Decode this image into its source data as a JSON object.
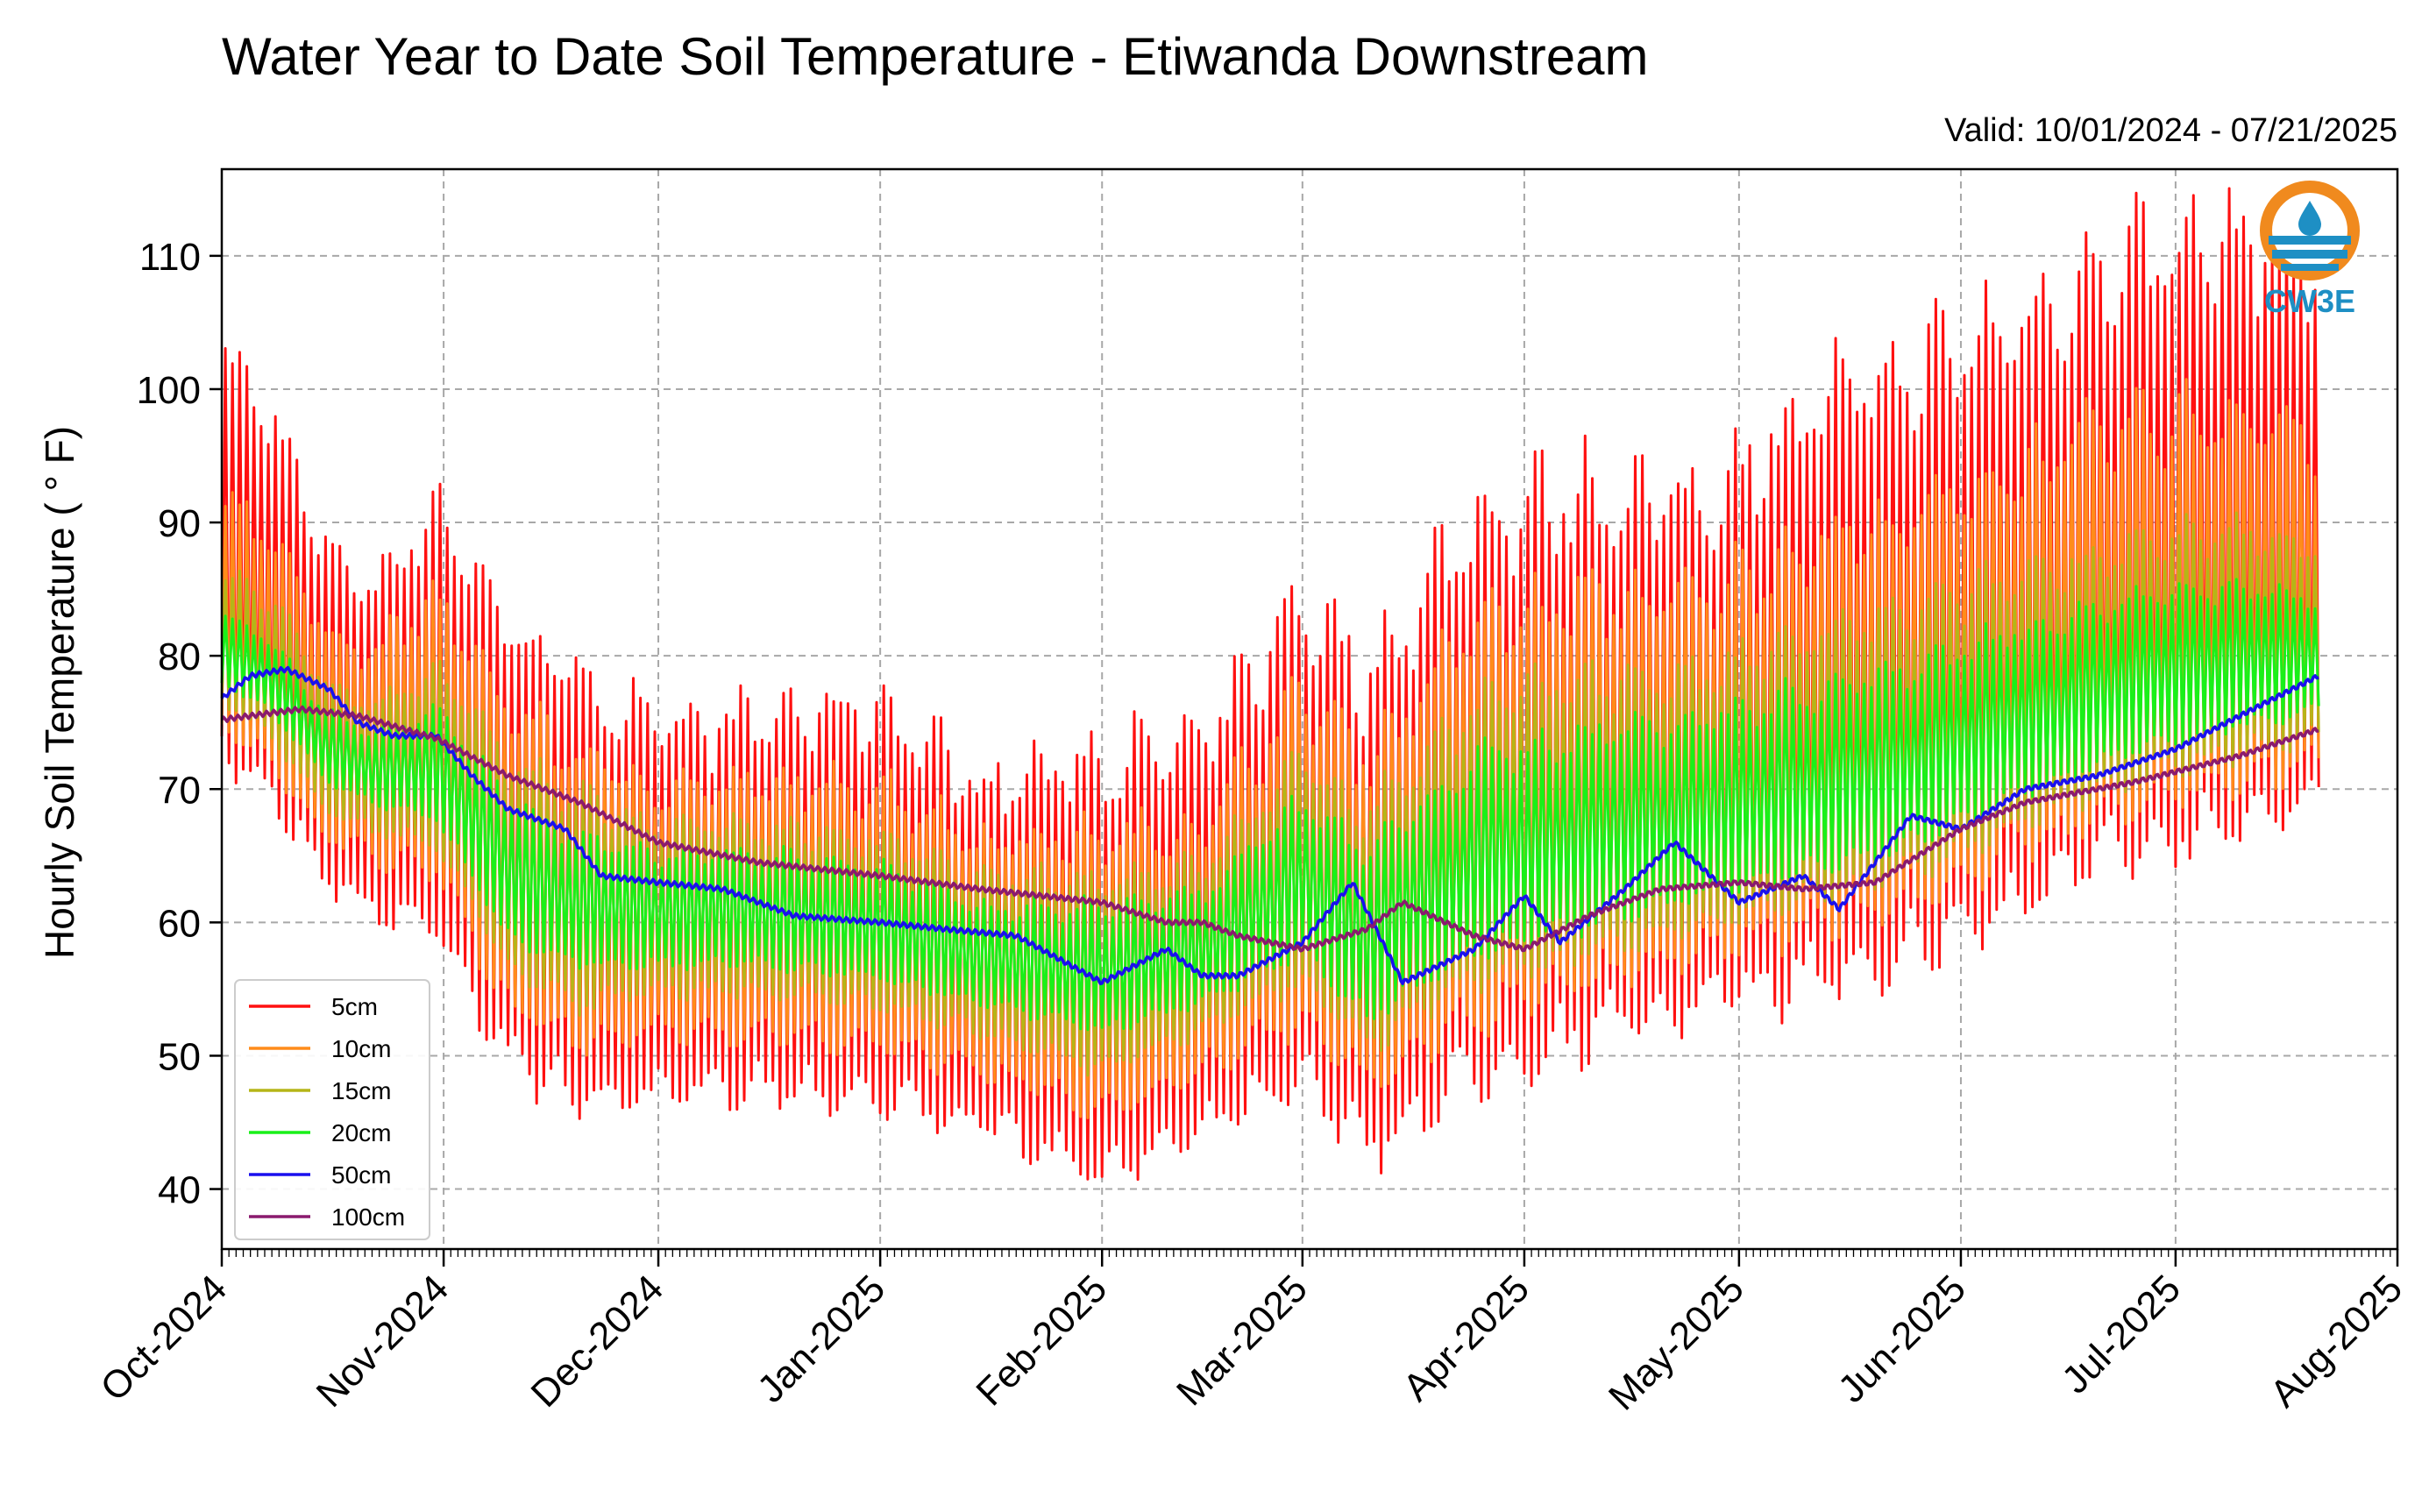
{
  "chart_data": {
    "type": "line",
    "title": "Water Year to Date Soil Temperature - Etiwanda Downstream",
    "subtitle": "Valid: 10/01/2024 - 07/21/2025",
    "ylabel": "Hourly Soil Temperature ( ° F)",
    "xlabel": "",
    "ylim": [
      35.5,
      116.5
    ],
    "yticks": [
      40,
      50,
      60,
      70,
      80,
      90,
      100,
      110
    ],
    "x_range": [
      "2024-10-01",
      "2025-08-01"
    ],
    "x_ticks": [
      {
        "date": "2024-10-01",
        "label": "Oct-2024"
      },
      {
        "date": "2024-11-01",
        "label": "Nov-2024"
      },
      {
        "date": "2024-12-01",
        "label": "Dec-2024"
      },
      {
        "date": "2025-01-01",
        "label": "Jan-2025"
      },
      {
        "date": "2025-02-01",
        "label": "Feb-2025"
      },
      {
        "date": "2025-03-01",
        "label": "Mar-2025"
      },
      {
        "date": "2025-04-01",
        "label": "Apr-2025"
      },
      {
        "date": "2025-05-01",
        "label": "May-2025"
      },
      {
        "date": "2025-06-01",
        "label": "Jun-2025"
      },
      {
        "date": "2025-07-01",
        "label": "Jul-2025"
      },
      {
        "date": "2025-08-01",
        "label": "Aug-2025"
      }
    ],
    "grid": true,
    "legend_position": "lower-left",
    "series": [
      {
        "name": "5cm",
        "color": "#ff1010",
        "kind": "diurnal",
        "dates": [
          "2024-10-01",
          "2024-10-08",
          "2024-10-15",
          "2024-10-22",
          "2024-10-31",
          "2024-11-10",
          "2024-11-20",
          "2024-12-01",
          "2024-12-15",
          "2025-01-01",
          "2025-01-15",
          "2025-02-01",
          "2025-02-15",
          "2025-03-01",
          "2025-03-10",
          "2025-03-25",
          "2025-04-10",
          "2025-04-25",
          "2025-05-10",
          "2025-05-25",
          "2025-06-10",
          "2025-06-25",
          "2025-07-10",
          "2025-07-21"
        ],
        "mins": [
          73,
          70,
          64,
          61,
          60,
          50,
          47,
          47,
          48,
          47,
          45,
          41,
          45,
          49,
          43,
          49,
          52,
          54,
          56,
          58,
          62,
          66,
          68,
          70
        ],
        "maxs": [
          102,
          98,
          88,
          85,
          91,
          82,
          78,
          74,
          75,
          76,
          70,
          72,
          73,
          84,
          78,
          90,
          92,
          91,
          98,
          101,
          105,
          110,
          111,
          108
        ]
      },
      {
        "name": "10cm",
        "color": "#ff8c1a",
        "kind": "diurnal",
        "dates": [
          "2024-10-01",
          "2024-10-08",
          "2024-10-15",
          "2024-10-22",
          "2024-10-31",
          "2024-11-10",
          "2024-11-20",
          "2024-12-01",
          "2024-12-15",
          "2025-01-01",
          "2025-01-15",
          "2025-02-01",
          "2025-02-15",
          "2025-03-01",
          "2025-03-10",
          "2025-03-25",
          "2025-04-10",
          "2025-04-25",
          "2025-05-10",
          "2025-05-25",
          "2025-06-10",
          "2025-06-25",
          "2025-07-10",
          "2025-07-21"
        ],
        "mins": [
          75,
          72,
          67,
          65,
          64,
          54,
          51,
          52,
          52,
          51,
          49,
          46,
          49,
          53,
          48,
          53,
          56,
          58,
          60,
          62,
          66,
          69,
          71,
          72
        ],
        "maxs": [
          92,
          89,
          82,
          80,
          84,
          76,
          72,
          70,
          70,
          70,
          66,
          66,
          67,
          77,
          72,
          82,
          84,
          84,
          88,
          90,
          94,
          97,
          98,
          96
        ]
      },
      {
        "name": "15cm",
        "color": "#b5b518",
        "kind": "diurnal",
        "dates": [
          "2024-10-01",
          "2024-10-08",
          "2024-10-15",
          "2024-10-22",
          "2024-10-31",
          "2024-11-10",
          "2024-11-20",
          "2024-12-01",
          "2024-12-15",
          "2025-01-01",
          "2025-01-15",
          "2025-02-01",
          "2025-02-15",
          "2025-03-01",
          "2025-03-10",
          "2025-03-25",
          "2025-04-10",
          "2025-04-25",
          "2025-05-10",
          "2025-05-25",
          "2025-06-10",
          "2025-06-25",
          "2025-07-10",
          "2025-07-21"
        ],
        "mins": [
          77,
          74,
          69,
          67,
          66,
          57,
          54,
          55,
          55,
          54,
          52,
          49,
          52,
          56,
          51,
          56,
          58,
          60,
          62,
          64,
          68,
          71,
          73,
          74
        ],
        "maxs": [
          86,
          84,
          78,
          76,
          79,
          72,
          69,
          67,
          67,
          66,
          63,
          63,
          64,
          72,
          68,
          76,
          78,
          78,
          81,
          83,
          86,
          88,
          89,
          88
        ]
      },
      {
        "name": "20cm",
        "color": "#19f019",
        "kind": "diurnal",
        "dates": [
          "2024-10-01",
          "2024-10-08",
          "2024-10-15",
          "2024-10-22",
          "2024-10-31",
          "2024-11-10",
          "2024-11-20",
          "2024-12-01",
          "2024-12-15",
          "2025-01-01",
          "2025-01-15",
          "2025-02-01",
          "2025-02-15",
          "2025-03-01",
          "2025-03-10",
          "2025-03-25",
          "2025-04-10",
          "2025-04-25",
          "2025-05-10",
          "2025-05-25",
          "2025-06-10",
          "2025-06-25",
          "2025-07-10",
          "2025-07-21"
        ],
        "mins": [
          78,
          76,
          71,
          69,
          68,
          59,
          57,
          57,
          57,
          56,
          54,
          52,
          54,
          58,
          53,
          58,
          60,
          62,
          64,
          66,
          70,
          73,
          75,
          76
        ],
        "maxs": [
          83,
          81,
          76,
          74,
          76,
          69,
          66,
          65,
          65,
          64,
          61,
          61,
          62,
          69,
          65,
          72,
          74,
          75,
          77,
          79,
          82,
          84,
          85,
          84
        ]
      },
      {
        "name": "50cm",
        "color": "#1a10ee",
        "kind": "smooth",
        "dates": [
          "2024-10-01",
          "2024-10-05",
          "2024-10-10",
          "2024-10-16",
          "2024-10-20",
          "2024-10-25",
          "2024-10-31",
          "2024-11-05",
          "2024-11-10",
          "2024-11-18",
          "2024-11-23",
          "2024-12-01",
          "2024-12-10",
          "2024-12-20",
          "2025-01-01",
          "2025-01-10",
          "2025-01-20",
          "2025-02-01",
          "2025-02-10",
          "2025-02-15",
          "2025-02-20",
          "2025-03-01",
          "2025-03-08",
          "2025-03-15",
          "2025-03-25",
          "2025-04-01",
          "2025-04-06",
          "2025-04-15",
          "2025-04-22",
          "2025-05-01",
          "2025-05-10",
          "2025-05-15",
          "2025-05-25",
          "2025-06-01",
          "2025-06-10",
          "2025-06-20",
          "2025-07-01",
          "2025-07-10",
          "2025-07-21"
        ],
        "values": [
          76.8,
          78.5,
          79,
          77.5,
          75,
          74,
          74,
          71,
          68.5,
          67,
          63.5,
          63,
          62.5,
          60.5,
          60,
          59.5,
          59,
          55.5,
          58,
          56,
          56,
          58.5,
          63,
          55.5,
          58,
          62,
          58.5,
          62.5,
          66,
          61.5,
          63.5,
          61,
          68,
          67,
          70,
          71,
          73,
          75.5,
          78.5
        ]
      },
      {
        "name": "100cm",
        "color": "#8a1a6e",
        "kind": "smooth",
        "dates": [
          "2024-10-01",
          "2024-10-05",
          "2024-10-12",
          "2024-10-20",
          "2024-10-31",
          "2024-11-10",
          "2024-11-20",
          "2024-12-01",
          "2024-12-15",
          "2025-01-01",
          "2025-01-15",
          "2025-02-01",
          "2025-02-10",
          "2025-02-15",
          "2025-02-20",
          "2025-03-01",
          "2025-03-10",
          "2025-03-15",
          "2025-03-25",
          "2025-04-01",
          "2025-04-10",
          "2025-04-20",
          "2025-05-01",
          "2025-05-10",
          "2025-05-20",
          "2025-06-01",
          "2025-06-10",
          "2025-06-25",
          "2025-07-10",
          "2025-07-21"
        ],
        "values": [
          75.2,
          75.5,
          76,
          75.5,
          73.8,
          71,
          69,
          66,
          64.5,
          63.5,
          62.5,
          61.5,
          60,
          60,
          59,
          58,
          59.5,
          61.5,
          59,
          58,
          60.5,
          62.5,
          63,
          62.5,
          63,
          67,
          69,
          70.5,
          72.5,
          74.5
        ]
      }
    ]
  },
  "logo": {
    "text": "CW3E",
    "ring_color": "#f08a1e",
    "water_color": "#1e8fc4"
  }
}
